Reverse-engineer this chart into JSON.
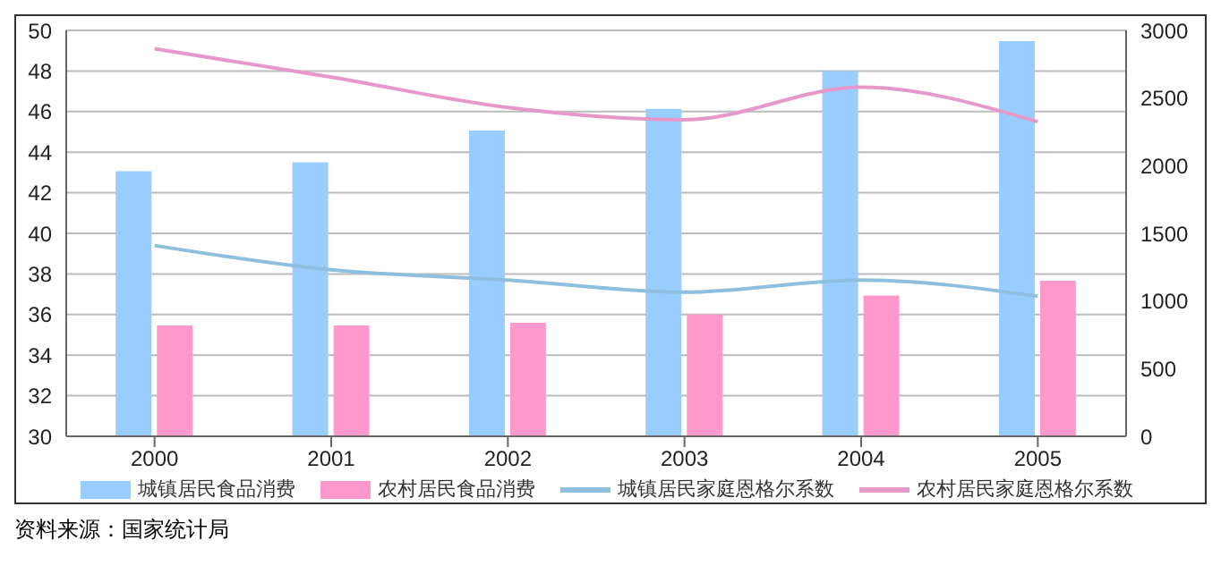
{
  "chart_data": {
    "type": "bar",
    "categories": [
      "2000",
      "2001",
      "2002",
      "2003",
      "2004",
      "2005"
    ],
    "series": [
      {
        "name": "城镇居民食品消费",
        "axis": "y2",
        "color": "#99ccff",
        "values": [
          1960,
          2025,
          2260,
          2420,
          2700,
          2920
        ]
      },
      {
        "name": "农村居民食品消费",
        "axis": "y2",
        "color": "#ff99cc",
        "values": [
          820,
          820,
          840,
          900,
          1040,
          1150
        ]
      },
      {
        "name": "城镇居民家庭恩格尔系数",
        "type": "line",
        "color": "#8fbfdf",
        "values": [
          39.4,
          38.2,
          37.7,
          37.1,
          37.7,
          36.9
        ]
      },
      {
        "name": "农村居民家庭恩格尔系数",
        "type": "line",
        "color": "#e699c8",
        "values": [
          49.1,
          47.7,
          46.2,
          45.6,
          47.2,
          45.5
        ]
      }
    ],
    "ylim": [
      30,
      50
    ],
    "yticks": [
      30,
      32,
      34,
      36,
      38,
      40,
      42,
      44,
      46,
      48,
      50
    ],
    "y2lim": [
      0,
      3000
    ],
    "y2ticks": [
      0,
      500,
      1000,
      1500,
      2000,
      2500,
      3000
    ],
    "grid": "y",
    "legend": "bottom",
    "marker": "none",
    "line_style": "solid",
    "annotations": [
      "资料来源：国家统计局"
    ]
  }
}
